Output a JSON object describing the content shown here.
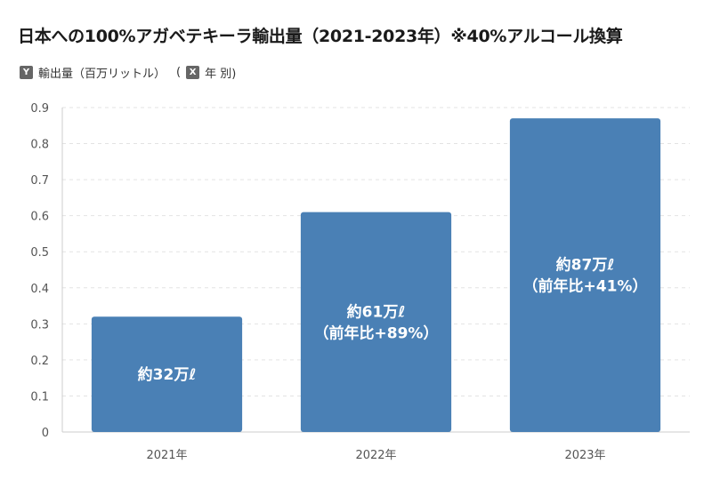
{
  "title": "日本への100%アガベテキーラ輸出量（2021-2023年）※40%アルコール換算",
  "axis_legend": {
    "y_badge": "Y",
    "y_label": "輸出量（百万リットル）",
    "open_paren": "(",
    "x_badge": "X",
    "x_label": "年 別)"
  },
  "chart_data": {
    "type": "bar",
    "categories": [
      "2021年",
      "2022年",
      "2023年"
    ],
    "values": [
      0.32,
      0.61,
      0.87
    ],
    "data_labels": [
      [
        "約32万ℓ"
      ],
      [
        "約61万ℓ",
        "（前年比+89%）"
      ],
      [
        "約87万ℓ",
        "（前年比+41%）"
      ]
    ],
    "ylabel": "輸出量（百万リットル）",
    "xlabel": "年 別",
    "ylim": [
      0,
      0.9
    ],
    "yticks": [
      "0",
      "0.1",
      "0.2",
      "0.3",
      "0.4",
      "0.5",
      "0.6",
      "0.7",
      "0.8",
      "0.9"
    ],
    "bar_color": "#4a80b5",
    "grid": true
  }
}
